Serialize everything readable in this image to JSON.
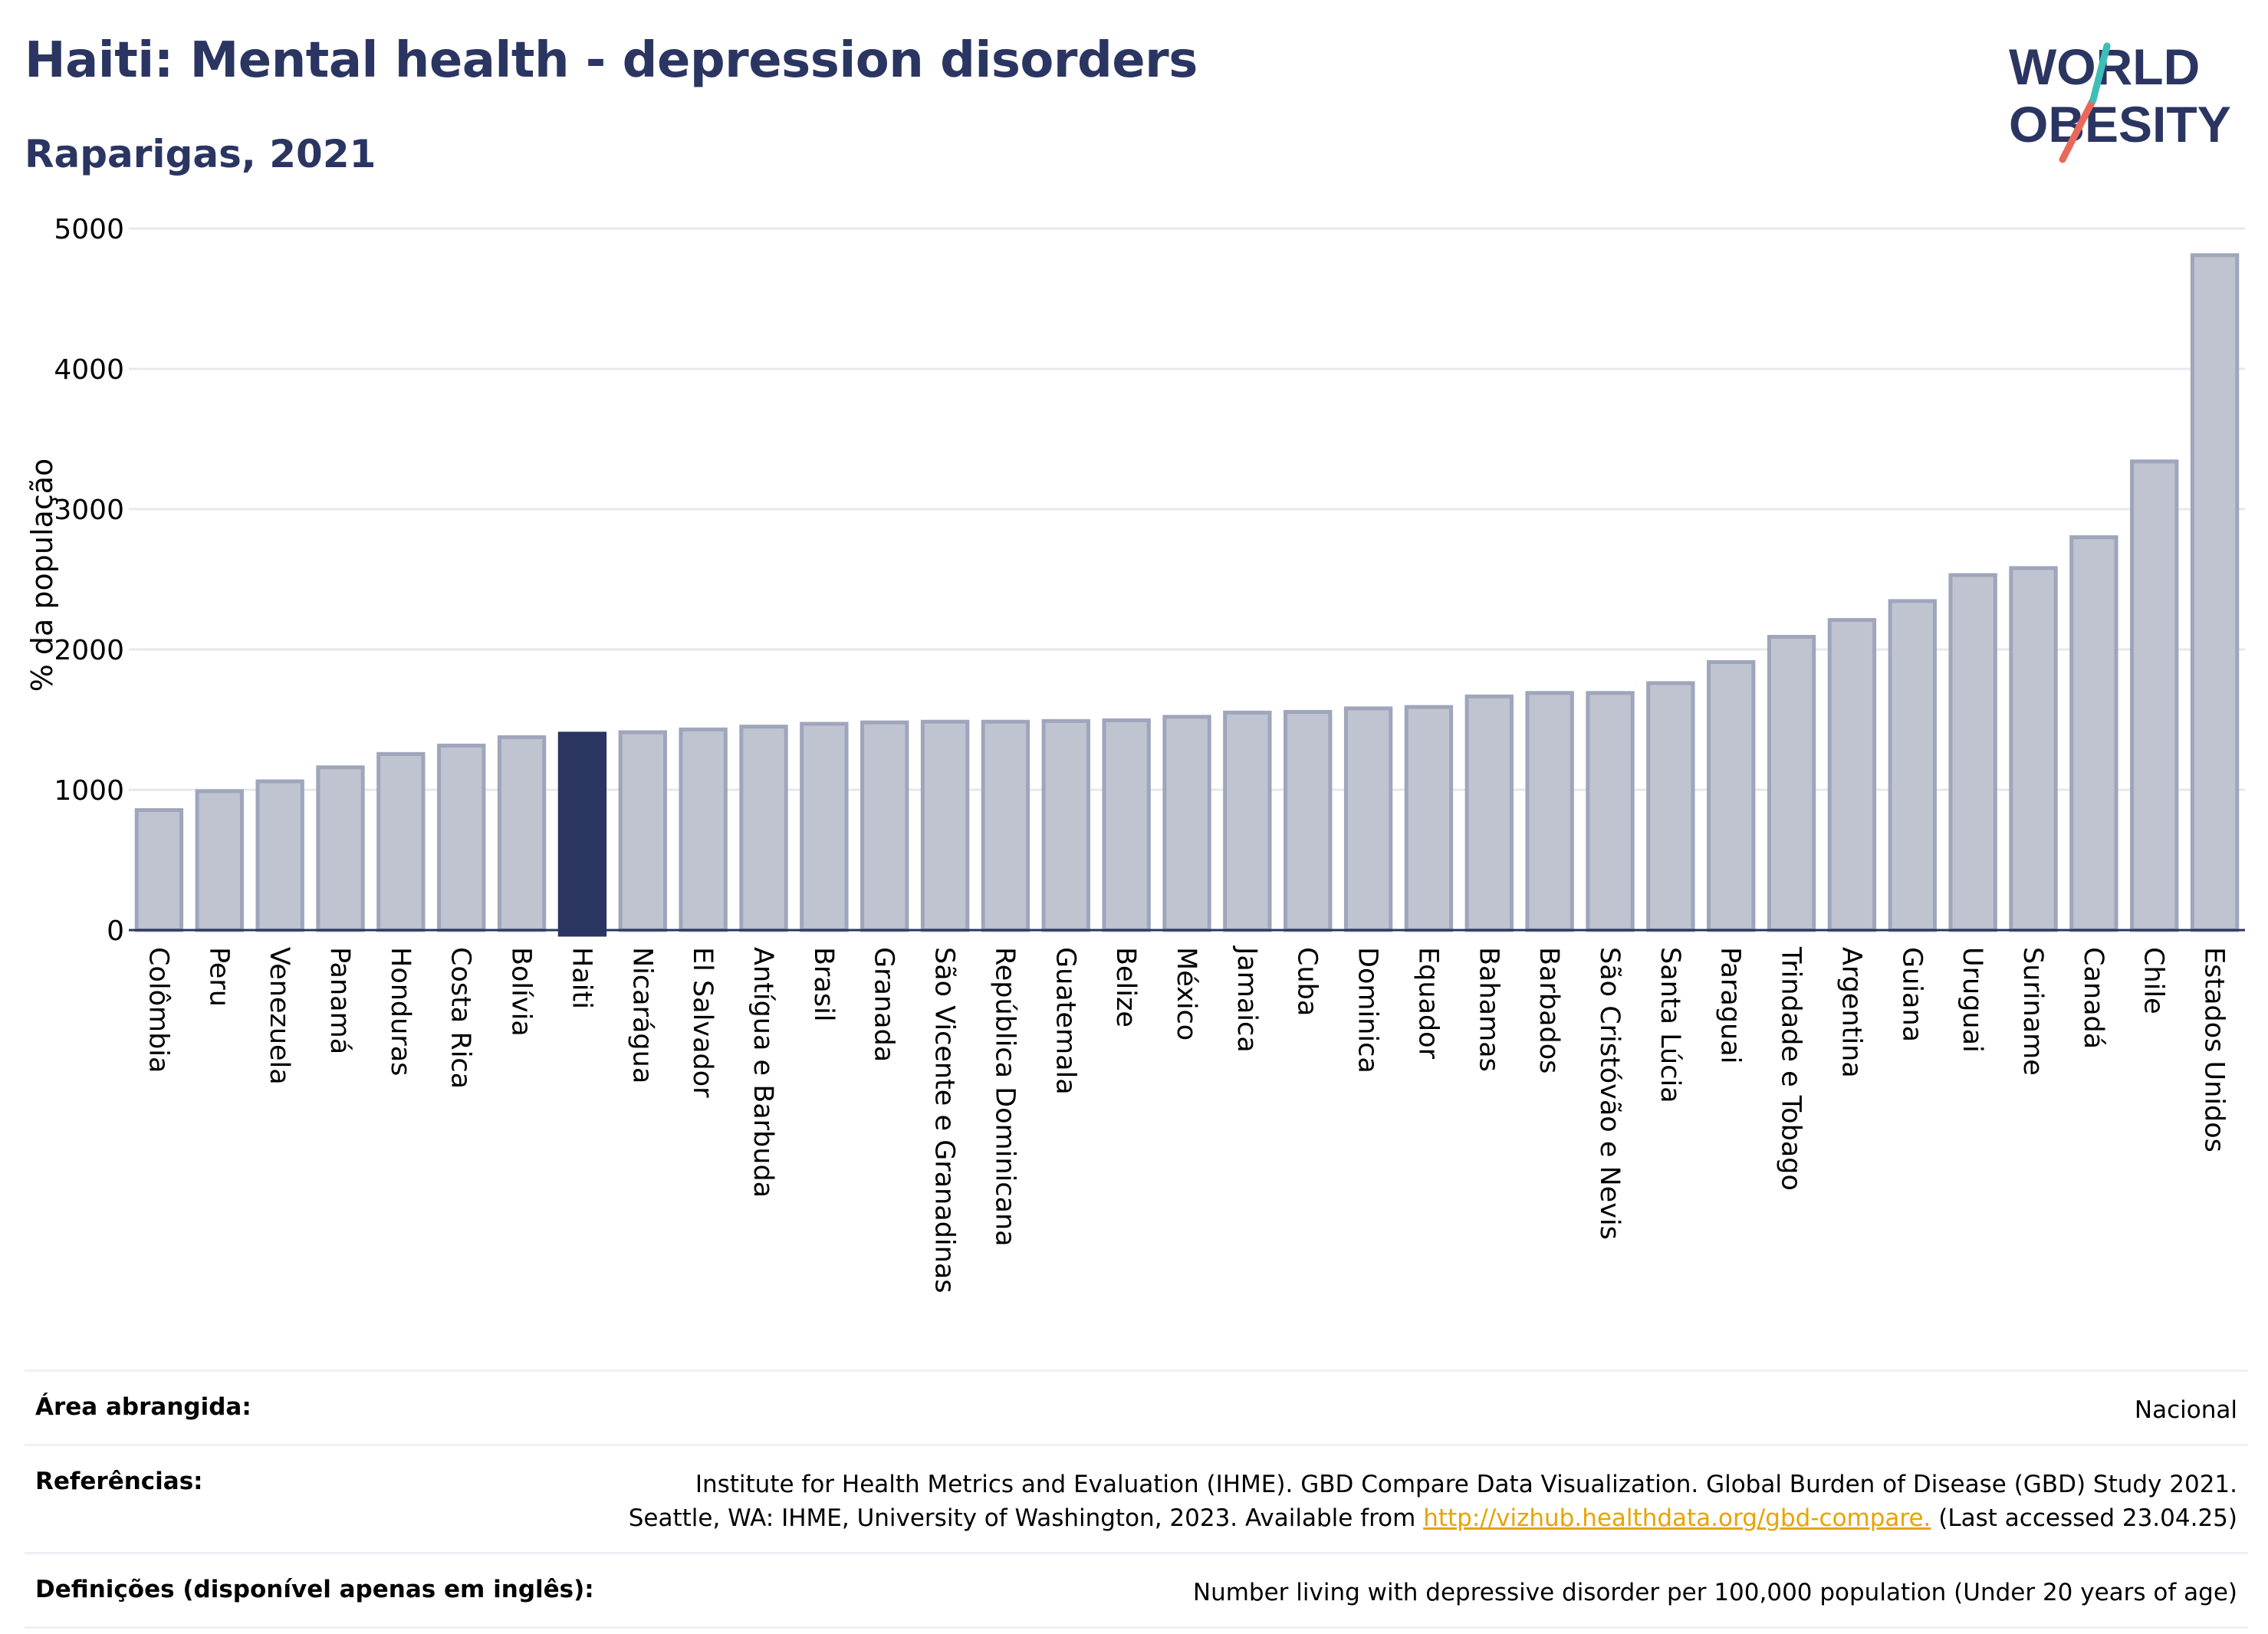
{
  "header": {
    "title": "Haiti: Mental health - depression disorders",
    "subtitle": "Raparigas, 2021"
  },
  "logo": {
    "line1": "WORLD",
    "line2": "OBESITY",
    "colors": [
      "#2b3562",
      "#e8695a",
      "#3dbfb8"
    ]
  },
  "colors": {
    "highlight": "#2b3562",
    "bar_fill": "#c0c4d1",
    "bar_stroke": "#9fa5bb",
    "grid": "#e6e8ee",
    "axis": "#2b3562"
  },
  "chart_data": {
    "type": "bar",
    "ylabel": "% da população",
    "ylim": [
      0,
      5000
    ],
    "yticks": [
      "0",
      "1000",
      "2000",
      "3000",
      "4000",
      "5000"
    ],
    "highlight": "Haiti",
    "categories": [
      "Colômbia",
      "Peru",
      "Venezuela",
      "Panamá",
      "Honduras",
      "Costa Rica",
      "Bolívia",
      "Haiti",
      "Nicarágua",
      "El Salvador",
      "Antígua e Barbuda",
      "Brasil",
      "Granada",
      "São Vicente e Granadinas",
      "República Dominicana",
      "Guatemala",
      "Belize",
      "México",
      "Jamaica",
      "Cuba",
      "Dominica",
      "Equador",
      "Bahamas",
      "Barbados",
      "São Cristóvão e Nevis",
      "Santa Lúcia",
      "Paraguai",
      "Trindade e Tobago",
      "Argentina",
      "Guiana",
      "Uruguai",
      "Suriname",
      "Canadá",
      "Chile",
      "Estados Unidos"
    ],
    "values": [
      855,
      990,
      1060,
      1160,
      1255,
      1315,
      1375,
      1400,
      1410,
      1430,
      1450,
      1470,
      1480,
      1485,
      1485,
      1490,
      1495,
      1520,
      1550,
      1555,
      1580,
      1590,
      1665,
      1690,
      1690,
      1760,
      1910,
      2090,
      2210,
      2345,
      2530,
      2580,
      2800,
      3340,
      4810
    ],
    "grid": true
  },
  "footer": {
    "area_label": "Área abrangida:",
    "area_value": "Nacional",
    "refs_label": "Referências:",
    "refs_line1": "Institute for Health Metrics and Evaluation (IHME). GBD Compare Data Visualization. Global Burden of Disease (GBD) Study 2021.",
    "refs_line2_pre": "Seattle, WA: IHME, University of Washington, 2023. Available from ",
    "refs_link": "http://vizhub.healthdata.org/gbd-compare.",
    "refs_line2_post": " (Last accessed 23.04.25)",
    "defs_label": "Definições (disponível apenas em inglês):",
    "defs_value": "Number living with depressive disorder per 100,000 population (Under 20 years of age)"
  }
}
